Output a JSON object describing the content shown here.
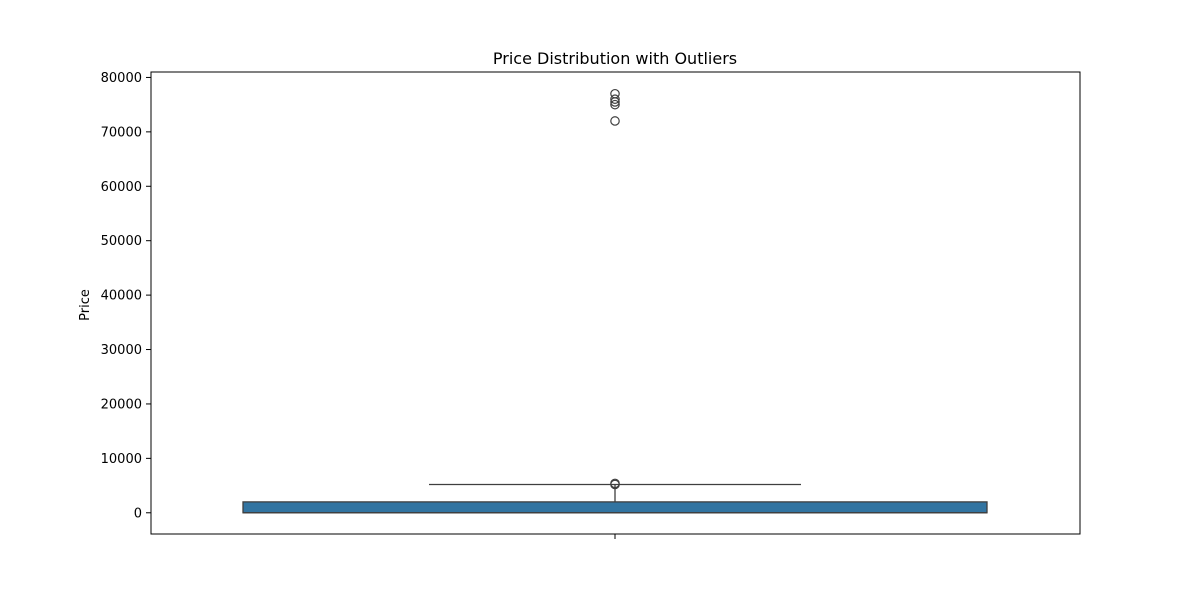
{
  "chart_data": {
    "type": "box",
    "title": "Price Distribution with Outliers",
    "xlabel": "",
    "ylabel": "Price",
    "ylim": [
      -3900,
      81000
    ],
    "yticks": [
      0,
      10000,
      20000,
      30000,
      40000,
      50000,
      60000,
      70000,
      80000
    ],
    "grid": false,
    "box": {
      "min": 0,
      "q1": 0,
      "median": 0,
      "q3": 2000,
      "max": 5200,
      "outliers": [
        5200,
        5400,
        72000,
        75000,
        75500,
        76000,
        77000
      ]
    },
    "colors": {
      "box_fill": "#3274a1",
      "line": "#3f3f3f",
      "axes": "#000000"
    }
  }
}
